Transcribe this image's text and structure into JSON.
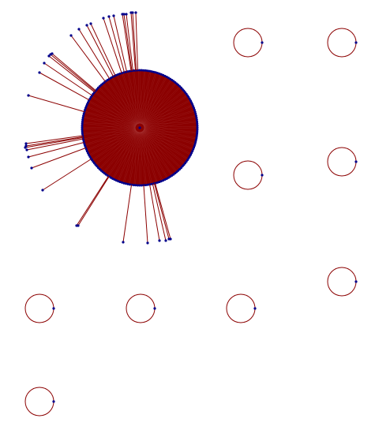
{
  "graph": {
    "type": "network",
    "colors": {
      "edge": "#8b0000",
      "node": "#00008b",
      "hub_fill": "#8b0000"
    },
    "main_component": {
      "hub_degree_approx": 180,
      "leaf_count": 36
    },
    "isolated_self_loop_nodes": 10
  }
}
